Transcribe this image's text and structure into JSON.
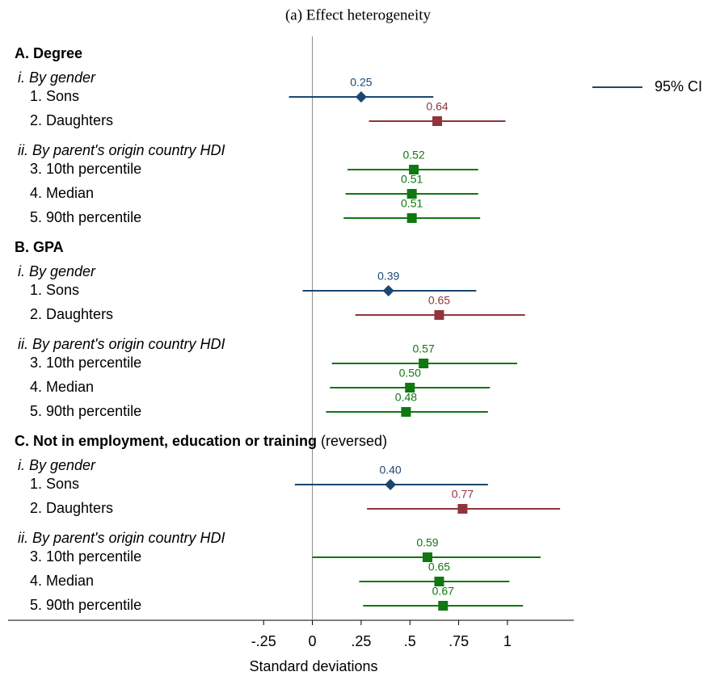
{
  "chart_data": {
    "type": "coefplot",
    "title": "(a) Effect heterogeneity",
    "x_label": "Standard deviations",
    "legend": {
      "label": "95% CI",
      "color": "#1a476f"
    },
    "xlim": [
      -1.56,
      1.34
    ],
    "xticks": [
      {
        "value": -0.25,
        "label": "-.25"
      },
      0,
      {
        "value": 0.25,
        "label": ".25"
      },
      {
        "value": 0.5,
        "label": ".5"
      },
      {
        "value": 0.75,
        "label": ".75"
      },
      1
    ],
    "zero_line": true,
    "panels": [
      {
        "title": "A. Degree",
        "groups": [
          {
            "label": "i. By gender",
            "rows": [
              {
                "label": "1. Sons",
                "value": 0.25,
                "value_label": "0.25",
                "lower": -0.12,
                "upper": 0.62,
                "color": "#1a476f",
                "marker": "diamond"
              },
              {
                "label": "2. Daughters",
                "value": 0.64,
                "value_label": "0.64",
                "lower": 0.29,
                "upper": 0.99,
                "color": "#90353b",
                "marker": "square"
              }
            ]
          },
          {
            "label": "ii. By parent's origin country HDI",
            "rows": [
              {
                "label": "3. 10th percentile",
                "value": 0.52,
                "value_label": "0.52",
                "lower": 0.18,
                "upper": 0.85,
                "color": "#117711",
                "marker": "square"
              },
              {
                "label": "4. Median",
                "value": 0.51,
                "value_label": "0.51",
                "lower": 0.17,
                "upper": 0.85,
                "color": "#117711",
                "marker": "square"
              },
              {
                "label": "5. 90th percentile",
                "value": 0.51,
                "value_label": "0.51",
                "lower": 0.16,
                "upper": 0.86,
                "color": "#117711",
                "marker": "square"
              }
            ]
          }
        ]
      },
      {
        "title": "B. GPA",
        "groups": [
          {
            "label": "i. By gender",
            "rows": [
              {
                "label": "1. Sons",
                "value": 0.39,
                "value_label": "0.39",
                "lower": -0.05,
                "upper": 0.84,
                "color": "#1a476f",
                "marker": "diamond"
              },
              {
                "label": "2. Daughters",
                "value": 0.65,
                "value_label": "0.65",
                "lower": 0.22,
                "upper": 1.09,
                "color": "#90353b",
                "marker": "square"
              }
            ]
          },
          {
            "label": "ii. By parent's origin country HDI",
            "rows": [
              {
                "label": "3. 10th percentile",
                "value": 0.57,
                "value_label": "0.57",
                "lower": 0.1,
                "upper": 1.05,
                "color": "#117711",
                "marker": "square"
              },
              {
                "label": "4. Median",
                "value": 0.5,
                "value_label": "0.50",
                "lower": 0.09,
                "upper": 0.91,
                "color": "#117711",
                "marker": "square"
              },
              {
                "label": "5. 90th percentile",
                "value": 0.48,
                "value_label": "0.48",
                "lower": 0.07,
                "upper": 0.9,
                "color": "#117711",
                "marker": "square"
              }
            ]
          }
        ]
      },
      {
        "title": "C. Not in employment, education or training",
        "suffix": "(reversed)",
        "groups": [
          {
            "label": "i. By gender",
            "rows": [
              {
                "label": "1. Sons",
                "value": 0.4,
                "value_label": "0.40",
                "lower": -0.09,
                "upper": 0.9,
                "color": "#1a476f",
                "marker": "diamond"
              },
              {
                "label": "2. Daughters",
                "value": 0.77,
                "value_label": "0.77",
                "lower": 0.28,
                "upper": 1.27,
                "color": "#90353b",
                "marker": "square"
              }
            ]
          },
          {
            "label": "ii. By parent's origin country HDI",
            "rows": [
              {
                "label": "3. 10th percentile",
                "value": 0.59,
                "value_label": "0.59",
                "lower": 0.0,
                "upper": 1.17,
                "color": "#117711",
                "marker": "square"
              },
              {
                "label": "4. Median",
                "value": 0.65,
                "value_label": "0.65",
                "lower": 0.24,
                "upper": 1.01,
                "color": "#117711",
                "marker": "square"
              },
              {
                "label": "5. 90th percentile",
                "value": 0.67,
                "value_label": "0.67",
                "lower": 0.26,
                "upper": 1.08,
                "color": "#117711",
                "marker": "square"
              }
            ]
          }
        ]
      }
    ]
  }
}
